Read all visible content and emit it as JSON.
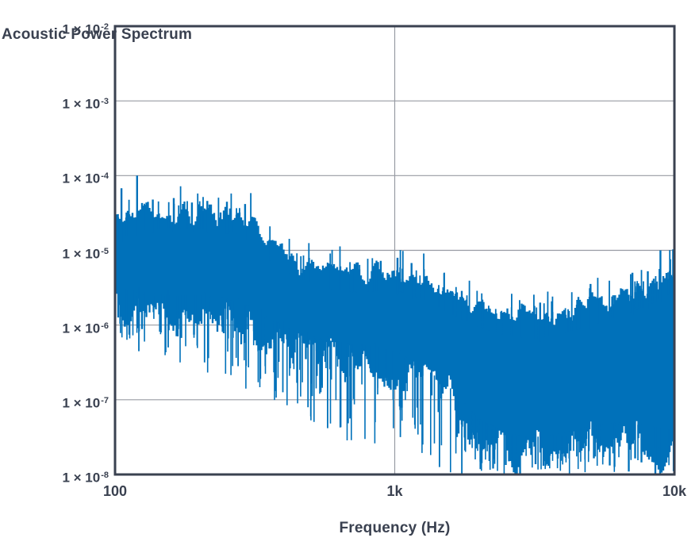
{
  "axes": {
    "x_label": "Frequency (Hz)",
    "y_label": "Acoustic Power Spectrum",
    "x_ticks": [
      {
        "label": "100",
        "logf": 2
      },
      {
        "label": "1k",
        "logf": 3
      },
      {
        "label": "10k",
        "logf": 4
      }
    ],
    "y_ticks": [
      {
        "base": "1 × 10",
        "exponent": "-2",
        "log_p": -2
      },
      {
        "base": "1 × 10",
        "exponent": "-3",
        "log_p": -3
      },
      {
        "base": "1 × 10",
        "exponent": "-4",
        "log_p": -4
      },
      {
        "base": "1 × 10",
        "exponent": "-5",
        "log_p": -5
      },
      {
        "base": "1 × 10",
        "exponent": "-6",
        "log_p": -6
      },
      {
        "base": "1 × 10",
        "exponent": "-7",
        "log_p": -7
      },
      {
        "base": "1 × 10",
        "exponent": "-8",
        "log_p": -8
      }
    ]
  },
  "style": {
    "ink": "#3a4150",
    "grid": "#989ba3",
    "accent": "#0071ba",
    "frame_width": 3,
    "grid_width": 1.2
  },
  "chart_data": {
    "type": "area",
    "title": "",
    "xlabel": "Frequency (Hz)",
    "ylabel": "Acoustic Power Spectrum",
    "x_scale": "log",
    "y_scale": "log",
    "x_range_hz": [
      100,
      10000
    ],
    "y_range": [
      1e-08,
      0.01
    ],
    "x_gridlines_logf": [
      3
    ],
    "y_gridlines_logp": [
      -3,
      -4,
      -5,
      -6,
      -7
    ],
    "legend": "none",
    "series_name": "acoustic power spectrum",
    "envelope": {
      "logf": [
        2.0,
        2.05,
        2.1,
        2.2,
        2.3,
        2.4,
        2.48,
        2.55,
        2.65,
        2.75,
        2.85,
        2.95,
        3.0,
        3.1,
        3.2,
        3.3,
        3.4,
        3.5,
        3.6,
        3.7,
        3.8,
        3.9,
        4.0
      ],
      "top": [
        -4.62,
        -4.55,
        -4.48,
        -4.45,
        -4.45,
        -4.48,
        -4.58,
        -4.88,
        -5.12,
        -5.26,
        -5.31,
        -5.3,
        -5.28,
        -5.4,
        -5.6,
        -5.78,
        -5.9,
        -5.94,
        -5.86,
        -5.76,
        -5.64,
        -5.5,
        -5.3
      ],
      "band_bottom": [
        -5.75,
        -5.78,
        -5.8,
        -5.85,
        -5.85,
        -5.9,
        -6.0,
        -6.15,
        -6.35,
        -6.45,
        -6.5,
        -6.55,
        -6.6,
        -6.8,
        -7.1,
        -7.5,
        -7.7,
        -7.75,
        -7.7,
        -7.6,
        -7.55,
        -7.6,
        -7.65
      ],
      "down_extreme": [
        -6.3,
        -6.35,
        -6.4,
        -6.5,
        -6.6,
        -6.75,
        -6.9,
        -7.1,
        -7.4,
        -7.5,
        -7.6,
        -7.6,
        -7.7,
        -7.9,
        -8.0,
        -8.0,
        -8.0,
        -8.0,
        -8.0,
        -8.0,
        -8.0,
        -8.0,
        -8.0
      ]
    },
    "peaks": [
      {
        "logf": 2.023,
        "log_p": -4.17
      },
      {
        "logf": 2.079,
        "log_p": -4.0
      },
      {
        "logf": 2.135,
        "log_p": -4.32
      },
      {
        "logf": 2.21,
        "log_p": -4.3
      },
      {
        "logf": 2.275,
        "log_p": -4.36
      },
      {
        "logf": 2.33,
        "log_p": -4.34
      },
      {
        "logf": 2.4,
        "log_p": -4.35
      },
      {
        "logf": 2.465,
        "log_p": -4.38
      },
      {
        "logf": 2.95,
        "log_p": -5.14
      },
      {
        "logf": 3.01,
        "log_p": -5.1
      },
      {
        "logf": 3.06,
        "log_p": -5.17
      },
      {
        "logf": 3.52,
        "log_p": -5.7
      },
      {
        "logf": 3.7,
        "log_p": -5.45
      },
      {
        "logf": 3.85,
        "log_p": -5.3
      },
      {
        "logf": 3.905,
        "log_p": -5.28
      },
      {
        "logf": 3.95,
        "log_p": -5.0
      },
      {
        "logf": 3.985,
        "log_p": -5.12
      },
      {
        "logf": 3.999,
        "log_p": -5.15
      }
    ],
    "deep_nulls": [
      {
        "logf": 2.085,
        "log_p": -6.35
      },
      {
        "logf": 2.19,
        "log_p": -6.3
      },
      {
        "logf": 2.32,
        "log_p": -6.5
      },
      {
        "logf": 2.44,
        "log_p": -6.55
      },
      {
        "logf": 2.52,
        "log_p": -6.72
      },
      {
        "logf": 2.6,
        "log_p": -6.9
      },
      {
        "logf": 2.69,
        "log_p": -7.1
      },
      {
        "logf": 2.76,
        "log_p": -7.38
      },
      {
        "logf": 2.84,
        "log_p": -7.25
      },
      {
        "logf": 2.93,
        "log_p": -7.3
      },
      {
        "logf": 3.02,
        "log_p": -7.5
      },
      {
        "logf": 3.1,
        "log_p": -7.6
      },
      {
        "logf": 3.16,
        "log_p": -7.9
      },
      {
        "logf": 3.24,
        "log_p": -8.0
      }
    ],
    "noise": {
      "seed": 1369,
      "bars": 356,
      "top_jitter": 0.14,
      "bottom_jitter": 0.24,
      "wander": 0.1,
      "up_spikes": 110,
      "up_spike_max": 0.32,
      "down_spikes": 240
    }
  }
}
